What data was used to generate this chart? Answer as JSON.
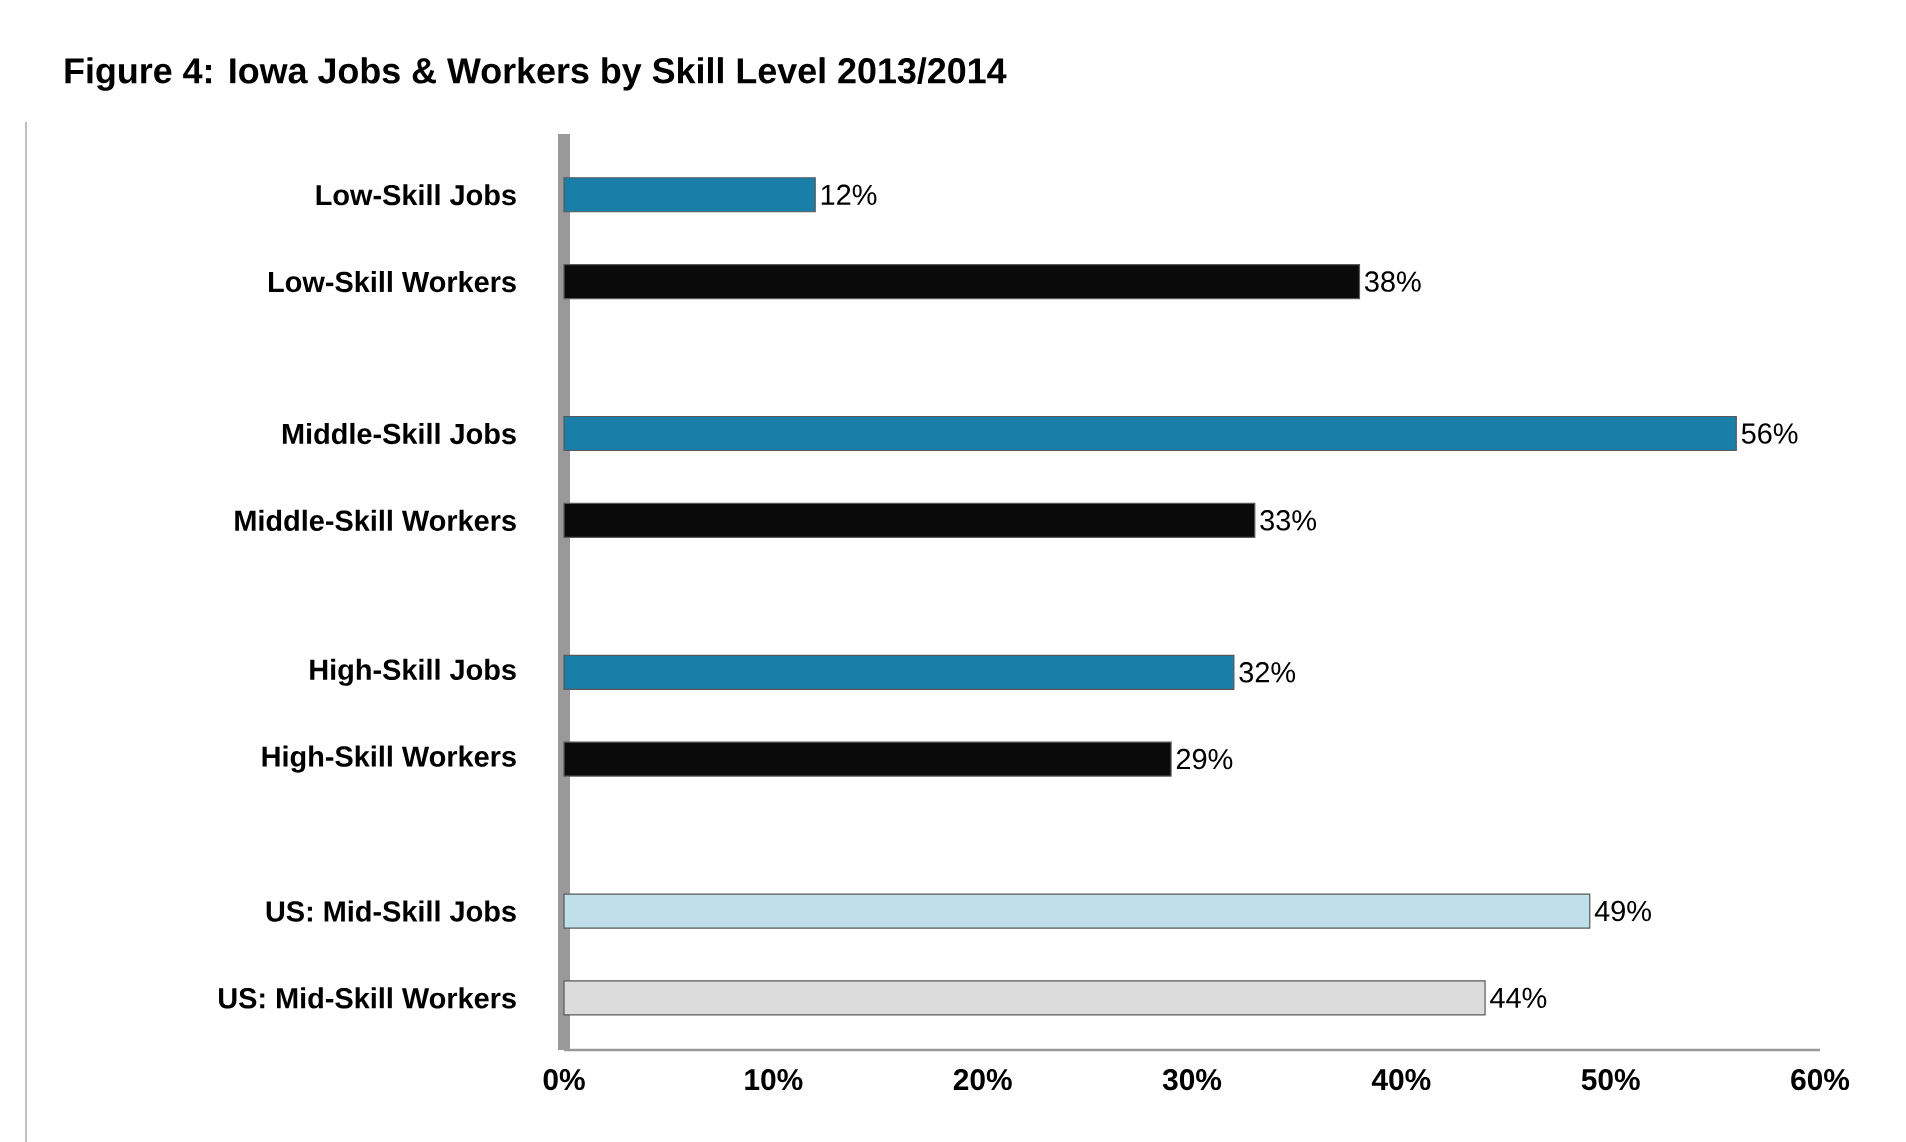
{
  "chart_data": {
    "type": "bar",
    "orientation": "horizontal",
    "title": "Figure 4: Iowa Jobs & Workers by Skill Level  2013/2014",
    "categories": [
      "Low-Skill Jobs",
      "Low-Skill Workers",
      "Middle-Skill Jobs",
      "Middle-Skill Workers",
      "High-Skill Jobs",
      "High-Skill Workers",
      "US: Mid-Skill Jobs",
      "US: Mid-Skill Workers"
    ],
    "values": [
      12,
      38,
      56,
      33,
      32,
      29,
      49,
      44
    ],
    "value_labels": [
      "12%",
      "38%",
      "56%",
      "33%",
      "32%",
      "29%",
      "49%",
      "44%"
    ],
    "colors": [
      "#1a7fa8",
      "#0a0a0a",
      "#1a7fa8",
      "#0a0a0a",
      "#1a7fa8",
      "#0a0a0a",
      "#bfe0ea",
      "#dcdcdc"
    ],
    "xlim": [
      0,
      60
    ],
    "xticks": [
      {
        "value": 0,
        "label": "0%"
      },
      {
        "value": 10,
        "label": "10%"
      },
      {
        "value": 20,
        "label": "20%"
      },
      {
        "value": 30,
        "label": "30%"
      },
      {
        "value": 40,
        "label": "40%"
      },
      {
        "value": 50,
        "label": "50%"
      },
      {
        "value": 60,
        "label": "60%"
      }
    ]
  }
}
